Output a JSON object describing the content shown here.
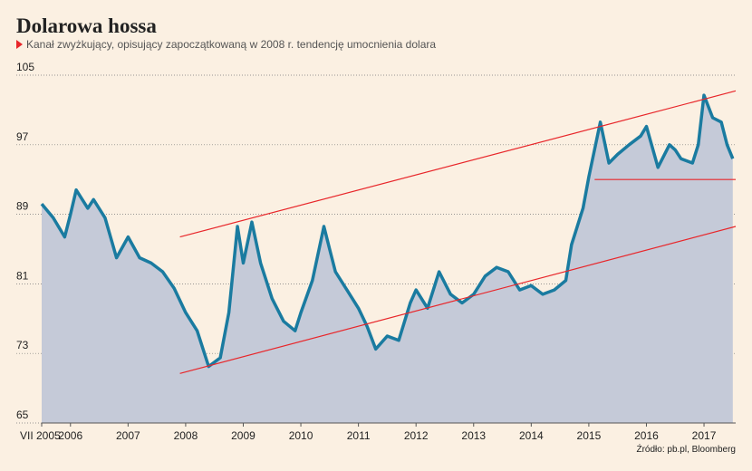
{
  "chart_data": {
    "type": "area-line",
    "title": "Dolarowa hossa",
    "subtitle": "Kanał zwyżkujący, opisujący zapoczątkowaną w 2008 r. tendencję umocnienia dolara",
    "source": "Źródło: pb.pl, Bloomberg",
    "x": [
      2005.5,
      2005.7,
      2005.9,
      2006.0,
      2006.1,
      2006.3,
      2006.4,
      2006.6,
      2006.8,
      2007.0,
      2007.2,
      2007.4,
      2007.6,
      2007.8,
      2008.0,
      2008.2,
      2008.4,
      2008.6,
      2008.75,
      2008.9,
      2009.0,
      2009.15,
      2009.3,
      2009.5,
      2009.7,
      2009.9,
      2010.0,
      2010.2,
      2010.4,
      2010.5,
      2010.6,
      2010.8,
      2011.0,
      2011.15,
      2011.3,
      2011.5,
      2011.7,
      2011.9,
      2012.0,
      2012.2,
      2012.4,
      2012.6,
      2012.8,
      2013.0,
      2013.2,
      2013.4,
      2013.6,
      2013.8,
      2014.0,
      2014.2,
      2014.4,
      2014.6,
      2014.7,
      2014.9,
      2015.0,
      2015.2,
      2015.35,
      2015.5,
      2015.7,
      2015.9,
      2016.0,
      2016.2,
      2016.4,
      2016.5,
      2016.6,
      2016.8,
      2016.9,
      2017.0,
      2017.15,
      2017.3,
      2017.4,
      2017.5
    ],
    "series": [
      {
        "color": "#1a7ba0",
        "values": [
          90.2,
          88.6,
          86.4,
          89,
          91.8,
          89.7,
          90.7,
          88.6,
          84,
          86.4,
          84,
          83.4,
          82.4,
          80.5,
          77.7,
          75.6,
          71.5,
          72.5,
          77.7,
          87.6,
          83.4,
          88.1,
          83.4,
          79.3,
          76.7,
          75.6,
          77.7,
          81.4,
          87.6,
          85,
          82.4,
          80.3,
          78.2,
          76.1,
          73.5,
          75,
          74.5,
          78.8,
          80.3,
          78.2,
          82.4,
          79.8,
          78.8,
          79.8,
          81.9,
          82.9,
          82.4,
          80.3,
          80.8,
          79.8,
          80.3,
          81.4,
          85.5,
          89.7,
          93.3,
          99.6,
          94.9,
          95.9,
          97,
          98,
          99.1,
          94.4,
          97,
          96.4,
          95.4,
          94.9,
          97,
          102.7,
          100.1,
          99.6,
          97,
          95.4
        ]
      }
    ],
    "area_color": "#c5cad8",
    "trend_color": "#e8262a",
    "trend_lines": [
      {
        "x": [
          2007.9,
          2017.55
        ],
        "y": [
          86.4,
          103.2
        ]
      },
      {
        "x": [
          2007.9,
          2017.55
        ],
        "y": [
          70.7,
          87.6
        ]
      },
      {
        "x": [
          2015.1,
          2017.55
        ],
        "y": [
          93,
          93
        ]
      }
    ],
    "xlim": [
      2005.5,
      2017.55
    ],
    "xticks": [
      {
        "value": 2005.5,
        "label": "VII 2005"
      },
      2006,
      2007,
      2008,
      2009,
      2010,
      2011,
      2012,
      2013,
      2014,
      2015,
      2016,
      2017
    ],
    "ylim": [
      65,
      105
    ],
    "yticks": [
      65,
      73,
      81,
      89,
      97,
      105
    ],
    "grid": true
  }
}
